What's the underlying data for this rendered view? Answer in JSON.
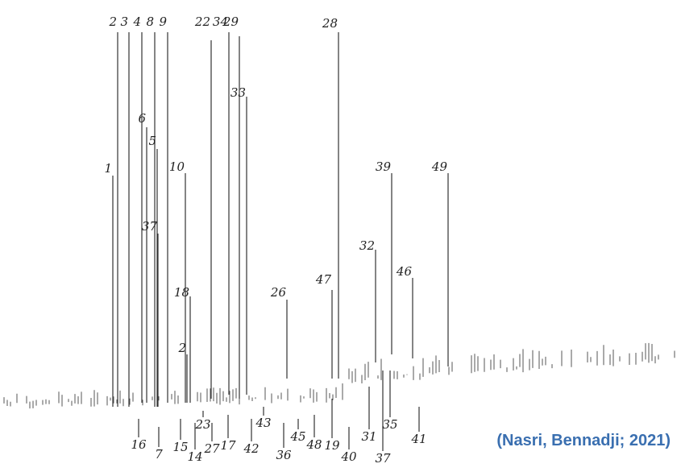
{
  "top_labels": [
    "2",
    "3",
    "4",
    "8",
    "9",
    "22",
    "34",
    "29",
    "28",
    "33",
    "6",
    "5",
    "10",
    "1",
    "37",
    "18",
    "2",
    "26",
    "47",
    "32",
    "46",
    "39",
    "49"
  ],
  "bottom_labels": [
    "16",
    "7",
    "15",
    "14",
    "23",
    "27",
    "17",
    "42",
    "43",
    "36",
    "45",
    "48",
    "19",
    "40",
    "31",
    "37",
    "35",
    "41"
  ],
  "citation": "(Nasri, Bennadji; 2021)"
}
